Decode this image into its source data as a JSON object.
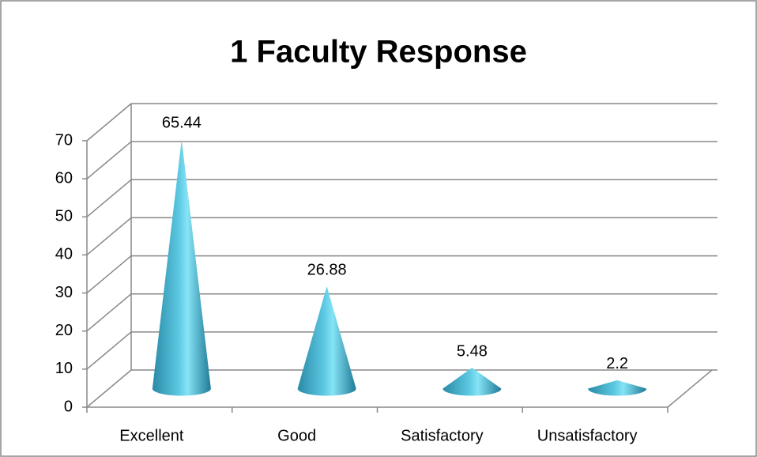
{
  "chart_data": {
    "type": "cone",
    "title": "1 Faculty Response",
    "categories": [
      "Excellent",
      "Good",
      "Satisfactory",
      "Unsatisfactory"
    ],
    "values": [
      65.44,
      26.88,
      5.48,
      2.2
    ],
    "color": "#3fb4d2",
    "ylim": [
      0,
      70
    ],
    "yticks": [
      0,
      10,
      20,
      30,
      40,
      50,
      60,
      70
    ],
    "grid": true
  }
}
